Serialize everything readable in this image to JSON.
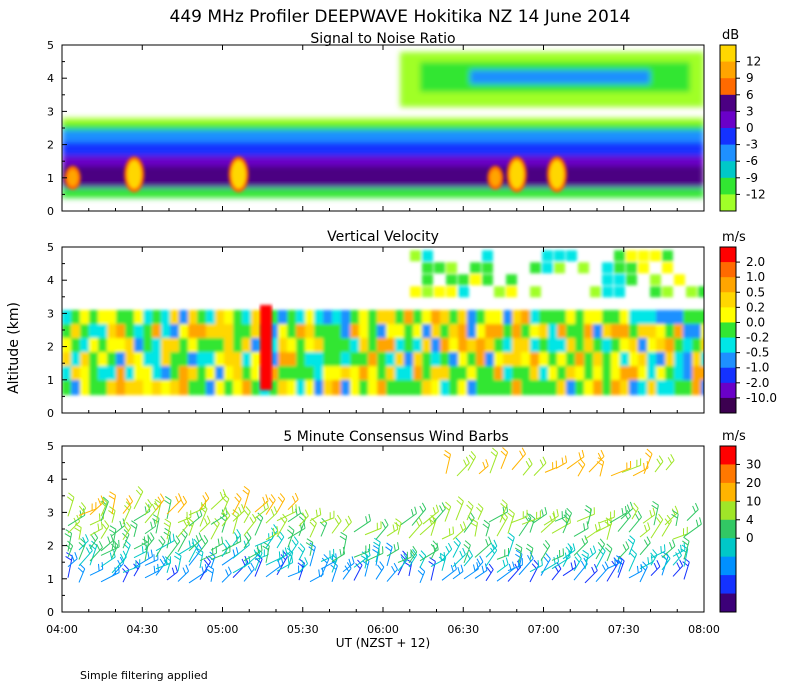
{
  "title": "449 MHz Profiler DEEPWAVE Hokitika NZ 14 June 2014",
  "footer": "Simple filtering applied",
  "chart_data": [
    {
      "type": "heatmap",
      "title": "Signal to Noise Ratio",
      "unit": "dB",
      "ylabel": "Altitude (km)",
      "xlabel": "UT  (NZST + 12)",
      "x_ticks": [
        "04:00",
        "04:30",
        "05:00",
        "05:30",
        "06:00",
        "06:30",
        "07:00",
        "07:30",
        "08:00"
      ],
      "x_range": [
        "04:00",
        "08:00"
      ],
      "y_ticks": [
        0,
        1,
        2,
        3,
        4,
        5
      ],
      "ylim": [
        0,
        5
      ],
      "colorbar": {
        "labels": [
          "12",
          "9",
          "6",
          "3",
          "0",
          "-3",
          "-6",
          "-9",
          "-12"
        ],
        "colors": [
          "#ffd700",
          "#ffa500",
          "#ff6a00",
          "#4b0082",
          "#6a00c8",
          "#1432ff",
          "#1e90ff",
          "#00c8c8",
          "#32e632",
          "#a0ff28"
        ]
      },
      "description_layers": [
        {
          "altitude_range_km": [
            0.5,
            1.5
          ],
          "snr_db": 3
        },
        {
          "altitude_range_km": [
            1.5,
            2.2
          ],
          "snr_db": -3
        },
        {
          "altitude_range_km": [
            2.2,
            2.8
          ],
          "snr_db": -6
        },
        {
          "altitude_range_km": [
            2.8,
            3.0
          ],
          "snr_db": -12
        },
        {
          "altitude_range_km": [
            3.8,
            5.0
          ],
          "snr_db": -9
        }
      ],
      "peaks": [
        {
          "time": "04:04",
          "alt_km": 1.0,
          "snr_db": 9
        },
        {
          "time": "04:27",
          "alt_km": 1.1,
          "snr_db": 12
        },
        {
          "time": "05:06",
          "alt_km": 1.1,
          "snr_db": 12
        },
        {
          "time": "06:42",
          "alt_km": 1.0,
          "snr_db": 9
        },
        {
          "time": "06:50",
          "alt_km": 1.1,
          "snr_db": 12
        },
        {
          "time": "07:05",
          "alt_km": 1.1,
          "snr_db": 12
        }
      ]
    },
    {
      "type": "heatmap",
      "title": "Vertical Velocity",
      "unit": "m/s",
      "ylabel": "Altitude (km)",
      "x_ticks": [
        "04:00",
        "04:30",
        "05:00",
        "05:30",
        "06:00",
        "06:30",
        "07:00",
        "07:30",
        "08:00"
      ],
      "y_ticks": [
        0,
        1,
        2,
        3,
        4,
        5
      ],
      "ylim": [
        0,
        5
      ],
      "colorbar": {
        "labels": [
          "2.0",
          "1.0",
          "0.5",
          "0.2",
          "0.0",
          "-0.2",
          "-0.5",
          "-1.0",
          "-2.0",
          "-10.0"
        ],
        "colors": [
          "#ff0000",
          "#ff6a00",
          "#ffa500",
          "#ffd700",
          "#ffff00",
          "#32e632",
          "#00e6e6",
          "#1e90ff",
          "#1432ff",
          "#6a00c8",
          "#3c0050"
        ]
      },
      "features": [
        {
          "time": "05:18",
          "alt_range_km": [
            0.7,
            3.1
          ],
          "w_ms": 2.0
        }
      ]
    },
    {
      "type": "scatter",
      "title": "5 Minute Consensus Wind Barbs",
      "unit": "m/s",
      "ylabel": "Altitude (km)",
      "x_ticks": [
        "04:00",
        "04:30",
        "05:00",
        "05:30",
        "06:00",
        "06:30",
        "07:00",
        "07:30",
        "08:00"
      ],
      "y_ticks": [
        0,
        1,
        2,
        3,
        4,
        5
      ],
      "ylim": [
        0,
        5
      ],
      "colorbar": {
        "labels": [
          "30",
          "20",
          "10",
          "4",
          "0"
        ],
        "colors": [
          "#ff0000",
          "#ff7800",
          "#ffb400",
          "#a0e628",
          "#32c864",
          "#00c8c8",
          "#0090ff",
          "#1432ff",
          "#3c0078"
        ]
      }
    }
  ]
}
